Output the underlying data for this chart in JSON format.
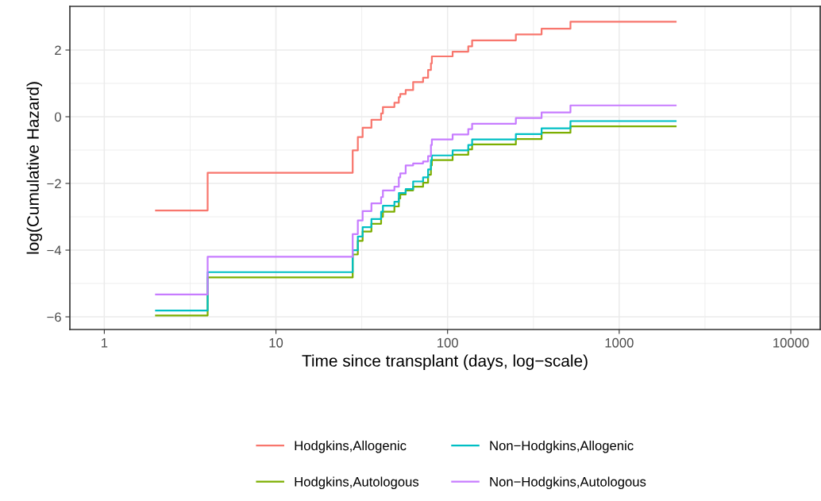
{
  "chart_data": {
    "type": "step",
    "xlabel": "Time since transplant (days, log−scale)",
    "ylabel": "log(Cumulative Hazard)",
    "x": [
      2,
      4,
      28,
      30,
      32,
      36,
      41,
      42,
      49,
      52,
      53,
      57,
      63,
      72,
      77,
      80,
      81,
      83,
      107,
      132,
      139,
      250,
      353,
      520,
      2133
    ],
    "series": [
      {
        "name": "Hodgkins,Allogenic",
        "color": "#f8766d",
        "values": [
          -2.81,
          -1.68,
          -1.01,
          -0.61,
          -0.33,
          -0.09,
          0.1,
          0.29,
          0.42,
          0.59,
          0.68,
          0.8,
          1.04,
          1.17,
          1.4,
          1.6,
          1.81,
          1.81,
          1.95,
          2.11,
          2.29,
          2.47,
          2.64,
          2.85,
          2.85
        ]
      },
      {
        "name": "Hodgkins,Autologous",
        "color": "#7cae00",
        "values": [
          -5.96,
          -4.82,
          -4.13,
          -3.72,
          -3.44,
          -3.21,
          -3.0,
          -2.85,
          -2.69,
          -2.45,
          -2.33,
          -2.21,
          -2.1,
          -1.98,
          -1.74,
          -1.46,
          -1.3,
          -1.3,
          -1.14,
          -0.98,
          -0.83,
          -0.67,
          -0.48,
          -0.29,
          -0.29
        ]
      },
      {
        "name": "Non−Hodgkins,Allogenic",
        "color": "#00bfc4",
        "values": [
          -5.81,
          -4.66,
          -4.0,
          -3.59,
          -3.31,
          -3.07,
          -2.85,
          -2.67,
          -2.55,
          -2.29,
          -2.29,
          -2.17,
          -1.94,
          -1.82,
          -1.58,
          -1.3,
          -1.16,
          -1.16,
          -1.01,
          -0.85,
          -0.68,
          -0.52,
          -0.35,
          -0.13,
          -0.13
        ]
      },
      {
        "name": "Non−Hodgkins,Autologous",
        "color": "#c77cff",
        "values": [
          -5.33,
          -4.2,
          -3.52,
          -3.11,
          -2.83,
          -2.6,
          -2.41,
          -2.21,
          -2.1,
          -1.82,
          -1.7,
          -1.46,
          -1.4,
          -1.34,
          -1.18,
          -0.85,
          -0.68,
          -0.68,
          -0.53,
          -0.37,
          -0.21,
          -0.04,
          0.13,
          0.34,
          0.34
        ]
      }
    ],
    "log": "x",
    "xlim": [
      0.63,
      14830
    ],
    "ylim": [
      -6.38,
      3.31
    ],
    "xticks": [
      1,
      10,
      100,
      1000,
      10000
    ],
    "yticks": [
      {
        "value": -6,
        "label": "−6"
      },
      {
        "value": -4,
        "label": "−4"
      },
      {
        "value": -2,
        "label": "−2"
      },
      0,
      2
    ],
    "grid": true,
    "legend": "bottom"
  }
}
